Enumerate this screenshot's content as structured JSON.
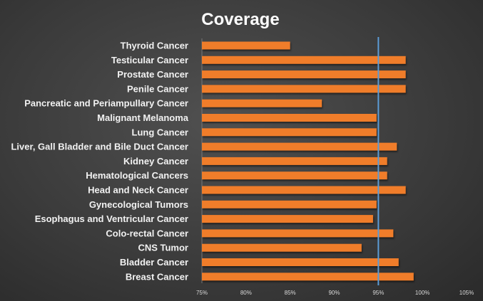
{
  "chart_data": {
    "type": "bar",
    "orientation": "horizontal",
    "title": "Coverage",
    "xlabel": "",
    "ylabel": "",
    "categories": [
      "Thyroid Cancer",
      "Testicular Cancer",
      "Prostate Cancer",
      "Penile Cancer",
      "Pancreatic and Periampullary Cancer",
      "Malignant Melanoma",
      "Lung Cancer",
      "Liver, Gall Bladder and Bile Duct Cancer",
      "Kidney Cancer",
      "Hematological Cancers",
      "Head and Neck Cancer",
      "Gynecological Tumors",
      "Esophagus and Ventricular Cancer",
      "Colo-rectal Cancer",
      "CNS Tumor",
      "Bladder Cancer",
      "Breast Cancer"
    ],
    "values": [
      85.0,
      98.1,
      98.1,
      98.1,
      88.6,
      94.8,
      94.8,
      97.1,
      96.0,
      96.0,
      98.1,
      94.8,
      94.4,
      96.7,
      93.1,
      97.3,
      99.0
    ],
    "xlim": [
      75,
      105
    ],
    "xticks": [
      "75%",
      "80%",
      "85%",
      "90%",
      "95%",
      "100%",
      "105%"
    ],
    "reference_line": 95,
    "grid": false,
    "legend": "none",
    "colors": {
      "bar": "#f07d2a",
      "reference_line": "#5b9bd5"
    }
  }
}
